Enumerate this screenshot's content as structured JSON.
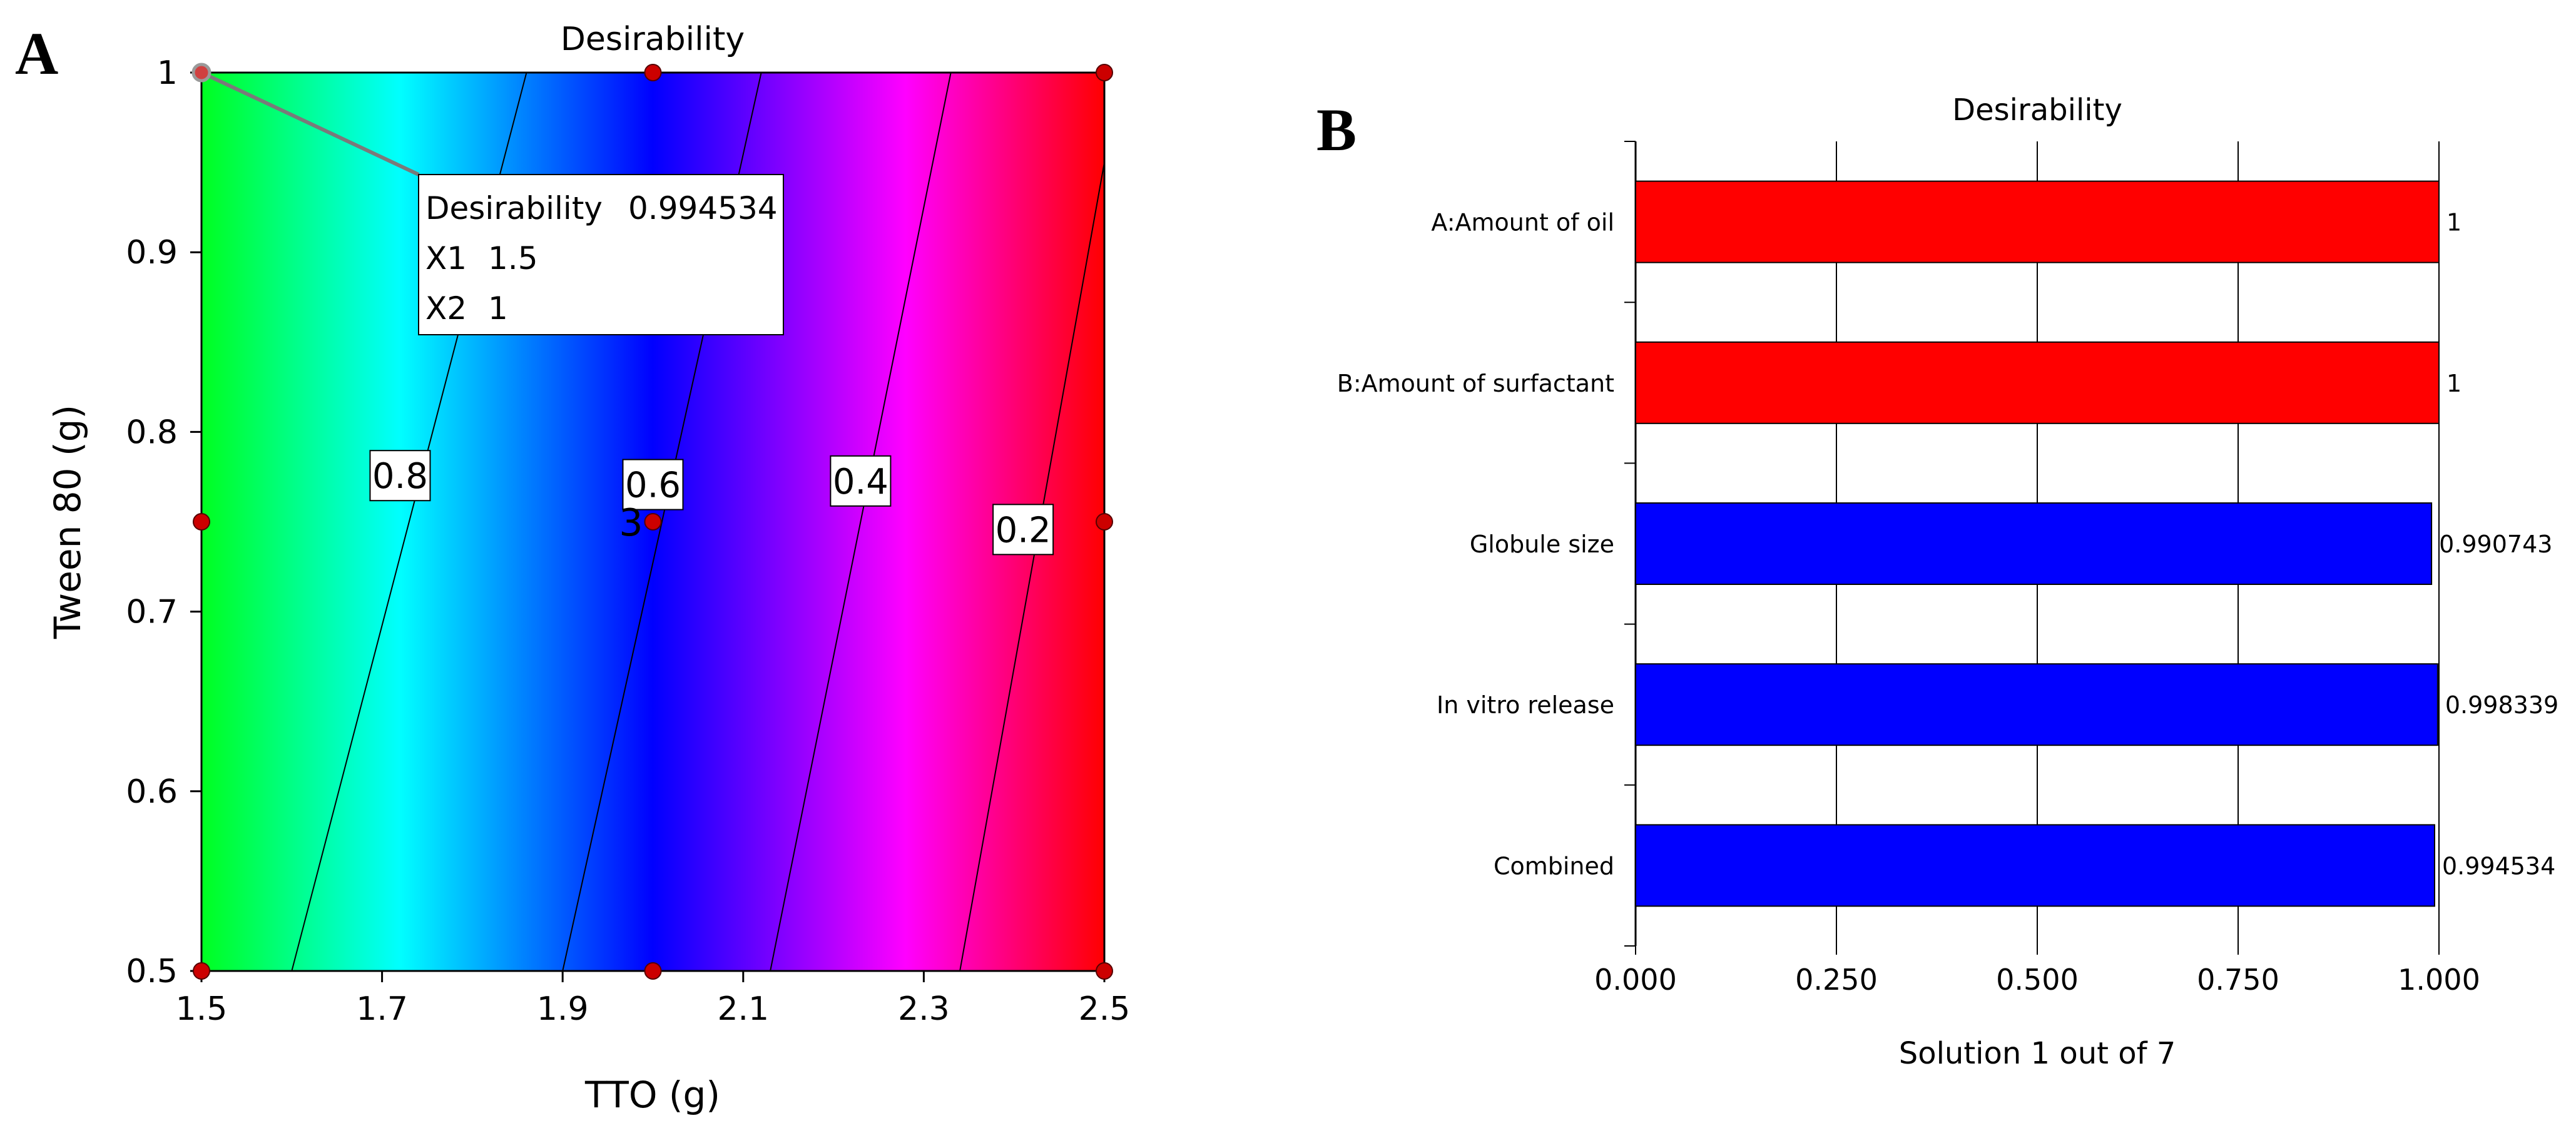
{
  "panel_a": {
    "letter": "A",
    "tooltip": {
      "rows": [
        {
          "label": "Desirability",
          "value": "0.994534"
        },
        {
          "label": "X1",
          "value": "1.5"
        },
        {
          "label": "X2",
          "value": "1"
        }
      ]
    },
    "center_point_label": "3",
    "colors": {
      "point": "#cc0000",
      "contour": "#000000",
      "tooltip_leader": "#7a7a7a"
    }
  },
  "panel_b": {
    "letter": "B",
    "colors": {
      "factor": "#ff0000",
      "response": "#0000ff",
      "grid": "#000000"
    }
  },
  "chart_data": [
    {
      "type": "heatmap",
      "subtype": "contour",
      "title": "Desirability",
      "xlabel": "TTO (g)",
      "ylabel": "Tween 80 (g)",
      "xlim": [
        1.5,
        2.5
      ],
      "ylim": [
        0.5,
        1
      ],
      "x_ticks": [
        "1.5",
        "1.7",
        "1.9",
        "2.1",
        "2.3",
        "2.5"
      ],
      "y_ticks": [
        "0.5",
        "0.6",
        "0.7",
        "0.8",
        "0.9",
        "1"
      ],
      "contours": [
        {
          "level": "0.8",
          "x_at_y_min": 1.6,
          "x_at_y_max": 1.86,
          "label_at": [
            1.72,
            0.775
          ]
        },
        {
          "level": "0.6",
          "x_at_y_min": 1.9,
          "x_at_y_max": 2.12,
          "label_at": [
            2.0,
            0.77
          ]
        },
        {
          "level": "0.4",
          "x_at_y_min": 2.13,
          "x_at_y_max": 2.33,
          "label_at": [
            2.23,
            0.772
          ]
        },
        {
          "level": "0.2",
          "x_at_y_min": 2.34,
          "x_at_y_max": 2.5,
          "x_at_y_top_edge": 0.95,
          "label_at": [
            2.41,
            0.745
          ]
        }
      ],
      "design_points": [
        {
          "x": 1.5,
          "y": 1
        },
        {
          "x": 2.0,
          "y": 1
        },
        {
          "x": 2.5,
          "y": 1
        },
        {
          "x": 1.5,
          "y": 0.75
        },
        {
          "x": 2.0,
          "y": 0.75
        },
        {
          "x": 2.5,
          "y": 0.75
        },
        {
          "x": 1.5,
          "y": 0.5
        },
        {
          "x": 2.0,
          "y": 0.5
        },
        {
          "x": 2.5,
          "y": 0.5
        }
      ],
      "selected_point": {
        "x": 1.5,
        "y": 1,
        "desirability": 0.994534
      },
      "color_scale": [
        {
          "x": 1.5,
          "color": "#00ff20"
        },
        {
          "x": 1.72,
          "color": "#00ffff"
        },
        {
          "x": 2.0,
          "color": "#0000ff"
        },
        {
          "x": 2.28,
          "color": "#ff00ff"
        },
        {
          "x": 2.5,
          "color": "#ff0000"
        }
      ]
    },
    {
      "type": "bar",
      "orientation": "horizontal",
      "title": "Desirability",
      "xlabel": "Solution 1 out of 7",
      "xlim": [
        0,
        1
      ],
      "x_ticks": [
        "0.000",
        "0.250",
        "0.500",
        "0.750",
        "1.000"
      ],
      "categories": [
        "A:Amount of oil",
        "B:Amount of surfactant",
        "Globule size",
        "In vitro release",
        "Combined"
      ],
      "values": [
        1,
        1,
        0.990743,
        0.998339,
        0.994534
      ],
      "value_labels": [
        "1",
        "1",
        "0.990743",
        "0.998339",
        "0.994534"
      ],
      "bar_kind": [
        "factor",
        "factor",
        "response",
        "response",
        "response"
      ]
    }
  ]
}
